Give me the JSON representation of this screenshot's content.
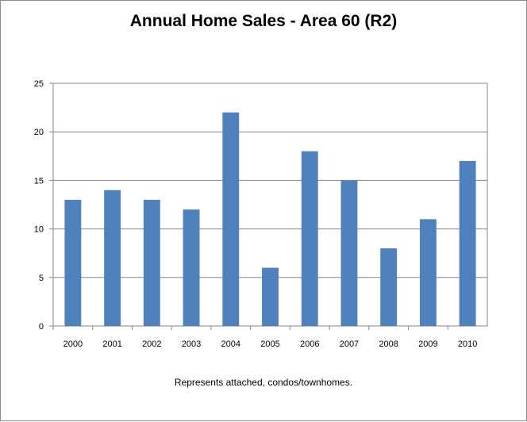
{
  "chart_data": {
    "type": "bar",
    "title": "Annual Home Sales - Area 60 (R2)",
    "caption": "Represents attached, condos/townhomes.",
    "categories": [
      "2000",
      "2001",
      "2002",
      "2003",
      "2004",
      "2005",
      "2006",
      "2007",
      "2008",
      "2009",
      "2010"
    ],
    "series": [
      {
        "values": [
          13,
          14,
          13,
          12,
          22,
          6,
          18,
          15,
          8,
          11,
          17
        ]
      }
    ],
    "ylim": [
      0,
      25
    ],
    "yticks": [
      "0",
      "5",
      "10",
      "15",
      "20",
      "25"
    ],
    "grid": true,
    "legend": "none",
    "bar_color": "#4f81bd",
    "grid_color": "#868686"
  }
}
